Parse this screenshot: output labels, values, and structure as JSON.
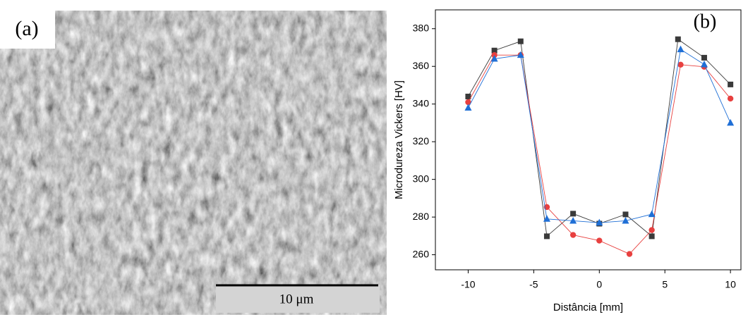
{
  "panel_a": {
    "label": "(a)",
    "scale_bar": "10 μm"
  },
  "chart_data": {
    "type": "line",
    "panel_label": "(b)",
    "x_label": "Distância [mm]",
    "y_label": "Microdureza Vickers [HV]",
    "xlim": [
      -12.5,
      10.8
    ],
    "ylim": [
      252,
      390
    ],
    "xticks": [
      -10,
      -5,
      0,
      5,
      10
    ],
    "yticks": [
      260,
      280,
      300,
      320,
      340,
      360,
      380
    ],
    "series": [
      {
        "color": "#3a3a3a",
        "marker": "square",
        "x": [
          -10,
          -8,
          -6,
          -4,
          -2,
          0,
          2,
          4,
          6,
          8,
          10
        ],
        "values": [
          344,
          368.4,
          373.3,
          269.8,
          281.8,
          276.5,
          281.4,
          269.8,
          374.4,
          364.6,
          350.4
        ]
      },
      {
        "color": "#e8403f",
        "marker": "circle",
        "x": [
          -10,
          -8,
          -6,
          -4,
          -2,
          0,
          2.3,
          4,
          6.2,
          8,
          10
        ],
        "values": [
          341,
          366,
          366,
          285.3,
          270.5,
          267.5,
          260.4,
          273.1,
          360.9,
          359.8,
          342.9
        ]
      },
      {
        "color": "#1f6fd6",
        "marker": "triangle",
        "x": [
          -10,
          -8,
          -6,
          -4,
          -2,
          0,
          2,
          4,
          6.2,
          8,
          10
        ],
        "values": [
          338,
          364,
          366,
          279,
          278,
          277,
          278,
          281.5,
          369,
          361,
          330
        ]
      }
    ]
  }
}
